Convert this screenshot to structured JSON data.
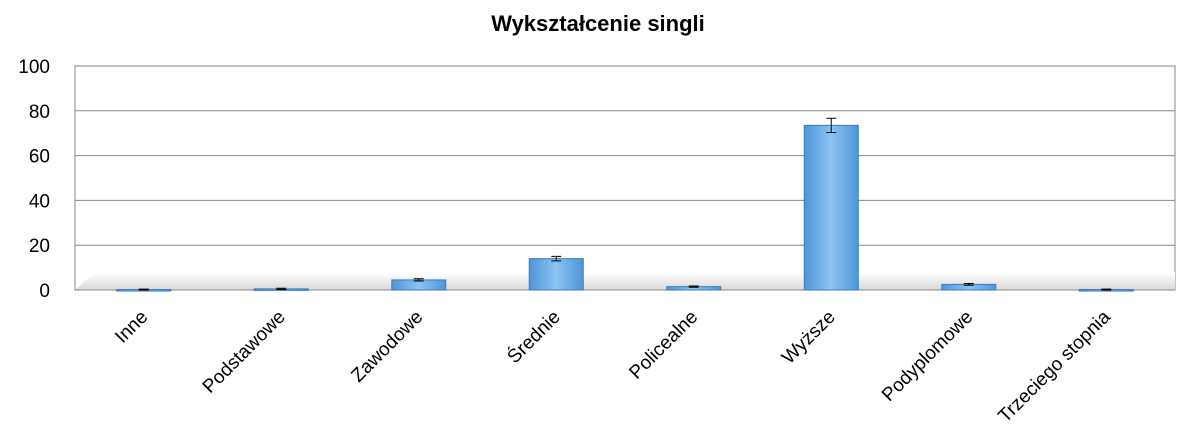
{
  "chart_data": {
    "type": "bar",
    "title": "Wykształcenie singli",
    "categories": [
      "Inne",
      "Podstawowe",
      "Zawodowe",
      "Średnie",
      "Policealne",
      "Wyższe",
      "Podyplomowe",
      "Trzeciego stopnia"
    ],
    "values": [
      0.2,
      0.5,
      4.5,
      14,
      1.5,
      73.5,
      2.5,
      0.2
    ],
    "errors": [
      0.2,
      0.3,
      0.5,
      1,
      0.3,
      3.2,
      0.4,
      0.2
    ],
    "color": "#6aaee8",
    "ylim": [
      0,
      100
    ],
    "yticks": [
      0,
      20,
      40,
      60,
      80,
      100
    ],
    "grid": true
  }
}
